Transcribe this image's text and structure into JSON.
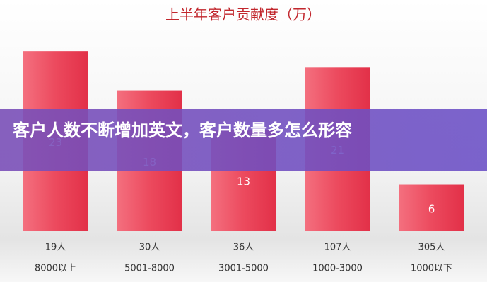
{
  "chart_data": {
    "type": "bar",
    "title": "上半年客户贡献度（万）",
    "categories": [
      [
        "19人",
        "8000以上"
      ],
      [
        "30人",
        "5001-8000"
      ],
      [
        "36人",
        "3001-5000"
      ],
      [
        "107人",
        "1000-3000"
      ],
      [
        "305人",
        "1000以下"
      ]
    ],
    "values": [
      23,
      18,
      13,
      21,
      6
    ],
    "color": "#ec4257",
    "ylim": [
      0,
      25
    ]
  },
  "banner": {
    "text": "客户人数不断增加英文，客户数量多怎么形容"
  }
}
